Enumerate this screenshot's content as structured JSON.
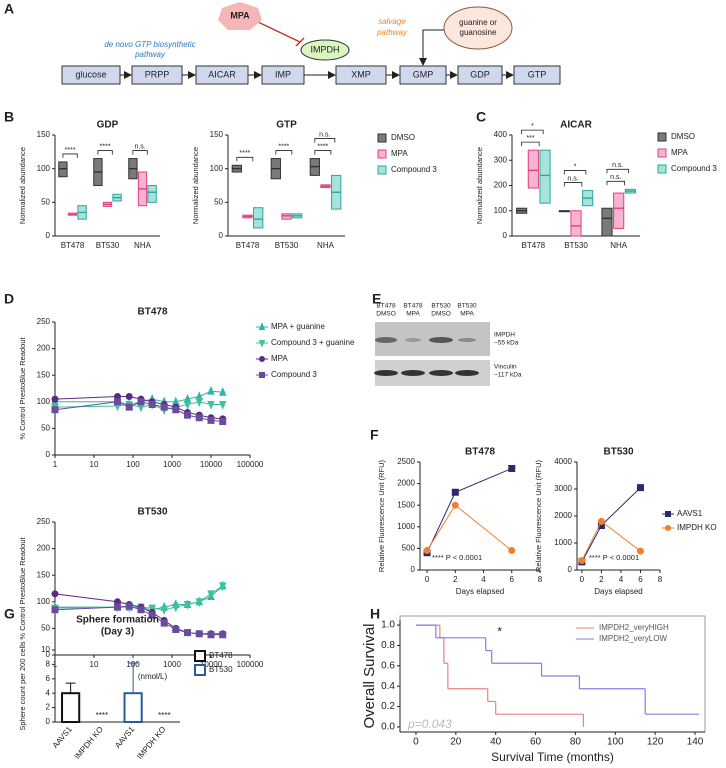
{
  "panels": [
    "A",
    "B",
    "C",
    "D",
    "E",
    "F",
    "G",
    "H"
  ],
  "diagram": {
    "nodes": [
      "glucose",
      "PRPP",
      "AICAR",
      "IMP",
      "XMP",
      "GMP",
      "GDP",
      "GTP"
    ],
    "enzyme": "IMPDH",
    "inhibitor": "MPA",
    "de_novo_label": [
      "de novo GTP biosynthetic",
      "pathway"
    ],
    "salvage_label": [
      "salvage",
      "pathway"
    ],
    "salvage_source": [
      "guanine or",
      "guanosine"
    ]
  },
  "blot": {
    "lanes": [
      [
        "BT478",
        "DMSO"
      ],
      [
        "BT478",
        "MPA"
      ],
      [
        "BT530",
        "DMSO"
      ],
      [
        "BT530",
        "MPA"
      ]
    ],
    "bands": [
      {
        "name": "IMPDH",
        "size": "~55 kDa"
      },
      {
        "name": "Vinculin",
        "size": "~117 kDa"
      }
    ]
  },
  "chart_data": [
    {
      "type": "box",
      "title": "GDP",
      "y_label": "Normalized abundance",
      "categories": [
        "BT478",
        "BT530",
        "NHA"
      ],
      "ylim": [
        0,
        150
      ],
      "yticks": [
        0,
        50,
        100,
        150
      ],
      "legend": false,
      "series": [
        {
          "name": "DMSO",
          "color": "#333333",
          "fill": "#7a7a7a",
          "values": [
            {
              "low": 88,
              "median": 100,
              "high": 110
            },
            {
              "low": 75,
              "median": 95,
              "high": 115
            },
            {
              "low": 85,
              "median": 100,
              "high": 115
            }
          ]
        },
        {
          "name": "MPA",
          "color": "#e0407f",
          "fill": "#f7b3d2",
          "values": [
            {
              "low": 31,
              "median": 32,
              "high": 34
            },
            {
              "low": 44,
              "median": 47,
              "high": 50
            },
            {
              "low": 45,
              "median": 70,
              "high": 95
            }
          ]
        },
        {
          "name": "Compound 3",
          "color": "#2aa89c",
          "fill": "#a6e3dc",
          "values": [
            {
              "low": 25,
              "median": 35,
              "high": 45
            },
            {
              "low": 52,
              "median": 57,
              "high": 62
            },
            {
              "low": 50,
              "median": 65,
              "high": 75
            }
          ]
        }
      ],
      "significance": [
        [
          "****"
        ],
        [
          "****"
        ],
        [
          "n.s."
        ]
      ]
    },
    {
      "type": "box",
      "title": "GTP",
      "y_label": "Normalized abundance",
      "categories": [
        "BT478",
        "BT530",
        "NHA"
      ],
      "ylim": [
        0,
        150
      ],
      "yticks": [
        0,
        50,
        100,
        150
      ],
      "legend": true,
      "series": [
        {
          "name": "DMSO",
          "color": "#333333",
          "fill": "#7a7a7a",
          "values": [
            {
              "low": 95,
              "median": 100,
              "high": 105
            },
            {
              "low": 85,
              "median": 100,
              "high": 115
            },
            {
              "low": 90,
              "median": 103,
              "high": 115
            }
          ]
        },
        {
          "name": "MPA",
          "color": "#e0407f",
          "fill": "#f7b3d2",
          "values": [
            {
              "low": 27,
              "median": 29,
              "high": 31
            },
            {
              "low": 25,
              "median": 30,
              "high": 33
            },
            {
              "low": 72,
              "median": 74,
              "high": 76
            }
          ]
        },
        {
          "name": "Compound 3",
          "color": "#2aa89c",
          "fill": "#a6e3dc",
          "values": [
            {
              "low": 12,
              "median": 25,
              "high": 42
            },
            {
              "low": 27,
              "median": 30,
              "high": 33
            },
            {
              "low": 40,
              "median": 65,
              "high": 90
            }
          ]
        }
      ],
      "significance": [
        [
          "****"
        ],
        [
          "****"
        ],
        [
          "****",
          "n.s."
        ]
      ]
    },
    {
      "type": "box",
      "title": "AICAR",
      "y_label": "Normalized abundance",
      "categories": [
        "BT478",
        "BT530",
        "NHA"
      ],
      "ylim": [
        0,
        400
      ],
      "yticks": [
        0,
        100,
        200,
        300,
        400
      ],
      "legend": true,
      "series": [
        {
          "name": "DMSO",
          "color": "#333333",
          "fill": "#7a7a7a",
          "values": [
            {
              "low": 90,
              "median": 100,
              "high": 110
            },
            {
              "low": 97,
              "median": 99,
              "high": 100
            },
            {
              "low": 0,
              "median": 70,
              "high": 110
            }
          ]
        },
        {
          "name": "MPA",
          "color": "#e0407f",
          "fill": "#f7b3d2",
          "values": [
            {
              "low": 190,
              "median": 260,
              "high": 340
            },
            {
              "low": 0,
              "median": 40,
              "high": 100
            },
            {
              "low": 30,
              "median": 110,
              "high": 170
            }
          ]
        },
        {
          "name": "Compound 3",
          "color": "#2aa89c",
          "fill": "#a6e3dc",
          "values": [
            {
              "low": 130,
              "median": 240,
              "high": 340
            },
            {
              "low": 120,
              "median": 150,
              "high": 180
            },
            {
              "low": 170,
              "median": 178,
              "high": 185
            }
          ]
        }
      ],
      "significance": [
        [
          "***",
          "*"
        ],
        [
          "n.s.",
          "*"
        ],
        [
          "n.s.",
          "n.s."
        ]
      ]
    },
    {
      "type": "line",
      "title": "BT478",
      "y_label": "% Control PrestoBlue Readout",
      "xlog": true,
      "xlim": [
        1,
        100000
      ],
      "xticks": [
        1,
        10,
        100,
        1000,
        10000,
        100000
      ],
      "ylim": [
        0,
        250
      ],
      "yticks": [
        0,
        50,
        100,
        150,
        200,
        250
      ],
      "legend": true,
      "x": [
        1,
        40,
        80,
        160,
        310,
        630,
        1250,
        2500,
        5000,
        10000,
        20000
      ],
      "series": [
        {
          "name": "MPA + guanine",
          "color": "#2fb5a8",
          "marker": "triangle",
          "values": [
            100,
            100,
            95,
            100,
            105,
            100,
            100,
            105,
            110,
            120,
            118
          ]
        },
        {
          "name": "Compound 3 + guanine",
          "color": "#3fc29a",
          "marker": "triangle-down",
          "values": [
            90,
            92,
            95,
            90,
            95,
            85,
            90,
            95,
            100,
            95,
            95
          ]
        },
        {
          "name": "MPA",
          "color": "#5b2a86",
          "marker": "circle",
          "values": [
            105,
            110,
            110,
            105,
            100,
            95,
            90,
            80,
            75,
            70,
            68
          ]
        },
        {
          "name": "Compound 3",
          "color": "#6a4c9c",
          "marker": "square",
          "values": [
            85,
            100,
            90,
            100,
            95,
            90,
            85,
            75,
            70,
            65,
            63
          ]
        }
      ]
    },
    {
      "type": "line",
      "title": "BT530",
      "y_label": "% Control PrestoBlue Readout",
      "x_label": "(nmol/L)",
      "xlog": true,
      "xlim": [
        1,
        100000
      ],
      "xticks": [
        1,
        10,
        100,
        1000,
        10000,
        100000
      ],
      "ylim": [
        0,
        250
      ],
      "yticks": [
        0,
        50,
        100,
        150,
        200,
        250
      ],
      "legend": false,
      "x": [
        1,
        40,
        80,
        160,
        310,
        630,
        1250,
        2500,
        5000,
        10000,
        20000
      ],
      "series": [
        {
          "name": "MPA + guanine",
          "color": "#2fb5a8",
          "marker": "triangle",
          "values": [
            90,
            90,
            90,
            88,
            85,
            90,
            95,
            95,
            100,
            110,
            130
          ]
        },
        {
          "name": "Compound 3 + guanine",
          "color": "#3fc29a",
          "marker": "triangle-down",
          "values": [
            88,
            90,
            90,
            90,
            88,
            85,
            90,
            95,
            100,
            115,
            130
          ]
        },
        {
          "name": "MPA",
          "color": "#5b2a86",
          "marker": "circle",
          "values": [
            115,
            100,
            95,
            90,
            80,
            65,
            50,
            42,
            40,
            40,
            40
          ]
        },
        {
          "name": "Compound 3",
          "color": "#6a4c9c",
          "marker": "square",
          "values": [
            85,
            90,
            92,
            85,
            75,
            60,
            48,
            42,
            40,
            38,
            38
          ]
        }
      ]
    },
    {
      "type": "line",
      "title": "BT478",
      "y_label": "Relative Fluorescence Unit (RFU)",
      "x_label": "Days elapsed",
      "xlim": [
        -0.5,
        8
      ],
      "xticks": [
        0,
        2,
        4,
        6,
        8
      ],
      "ylim": [
        0,
        2500
      ],
      "yticks": [
        0,
        500,
        1000,
        1500,
        2000,
        2500
      ],
      "legend": false,
      "x": [
        0,
        2,
        6
      ],
      "annotation": "**** P < 0.0001",
      "series": [
        {
          "name": "AAVS1",
          "color": "#2a2a6e",
          "marker": "square",
          "values": [
            400,
            1800,
            2350
          ]
        },
        {
          "name": "IMPDH KO",
          "color": "#f08030",
          "marker": "circle",
          "values": [
            450,
            1500,
            450
          ]
        }
      ]
    },
    {
      "type": "line",
      "title": "BT530",
      "y_label": "Relative Fluorescence Unit (RFU)",
      "x_label": "Days elapsed",
      "xlim": [
        -0.5,
        8
      ],
      "xticks": [
        0,
        2,
        4,
        6,
        8
      ],
      "ylim": [
        0,
        4000
      ],
      "yticks": [
        0,
        1000,
        2000,
        3000,
        4000
      ],
      "legend": true,
      "x": [
        0,
        2,
        6
      ],
      "annotation": "**** P < 0.0001",
      "series": [
        {
          "name": "AAVS1",
          "color": "#2a2a6e",
          "marker": "square",
          "values": [
            300,
            1650,
            3050
          ]
        },
        {
          "name": "IMPDH KO",
          "color": "#f08030",
          "marker": "circle",
          "values": [
            350,
            1800,
            700
          ]
        }
      ]
    },
    {
      "type": "bar",
      "title": "Sphere formation",
      "subtitle": "(Day 3)",
      "y_label": "Sphere count per 200 cells",
      "categories": [
        "AAVS1",
        "IMPDH KO",
        "AAVS1",
        "IMPDH KO"
      ],
      "ylim": [
        0,
        10
      ],
      "yticks": [
        0,
        2,
        4,
        6,
        8,
        10
      ],
      "legend": true,
      "series": [
        {
          "name": "BT478",
          "color": "#111111",
          "values": [
            4,
            0,
            null,
            null
          ],
          "errors": [
            1.4,
            0,
            null,
            null
          ]
        },
        {
          "name": "BT530",
          "color": "#2b5a9a",
          "values": [
            null,
            null,
            4,
            0
          ],
          "errors": [
            null,
            null,
            4.2,
            0
          ]
        }
      ],
      "significance": [
        null,
        "****",
        null,
        "****"
      ]
    },
    {
      "type": "step",
      "y_label": "Overall Survival",
      "x_label": "Survival Time (months)",
      "xlim": [
        -8,
        145
      ],
      "xticks": [
        0,
        20,
        40,
        60,
        80,
        100,
        120,
        140
      ],
      "ylim": [
        -0.05,
        1.05
      ],
      "yticks": [
        {
          "value": 0,
          "label": "0.0"
        },
        0.2,
        0.4,
        0.6,
        0.8,
        {
          "value": 1,
          "label": "1.0"
        }
      ],
      "legend": true,
      "significance": "*",
      "p_value": "p=0.043",
      "series": [
        {
          "name": "IMPDH2_veryHIGH",
          "color": "#f08080",
          "time": [
            0,
            12,
            14,
            16,
            36,
            40,
            84
          ],
          "values": [
            1,
            0.875,
            0.625,
            0.375,
            0.25,
            0.125,
            0
          ]
        },
        {
          "name": "IMPDH2_veryLOW",
          "color": "#8080e0",
          "time": [
            0,
            10,
            35,
            38,
            63,
            82,
            115,
            142
          ],
          "values": [
            1,
            0.875,
            0.75,
            0.625,
            0.5,
            0.375,
            0.125,
            0.125
          ]
        }
      ]
    }
  ]
}
